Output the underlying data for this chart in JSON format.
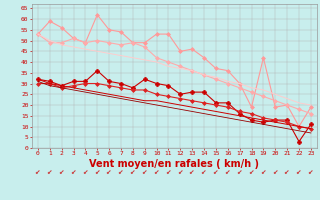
{
  "background_color": "#c8eeed",
  "grid_color": "#b0b0b0",
  "xlabel": "Vent moyen/en rafales ( km/h )",
  "xlabel_color": "#cc0000",
  "xlabel_fontsize": 7,
  "xtick_color": "#cc0000",
  "ytick_color": "#cc0000",
  "ytick_vals": [
    0,
    5,
    10,
    15,
    20,
    25,
    30,
    35,
    40,
    45,
    50,
    55,
    60,
    65
  ],
  "xlim": [
    -0.5,
    23.5
  ],
  "ylim": [
    0,
    67
  ],
  "line1_color": "#ff9999",
  "line1_marker": "D",
  "line1_markersize": 2.0,
  "line1_linewidth": 0.8,
  "line1_y": [
    53,
    59,
    56,
    51,
    49,
    62,
    55,
    54,
    49,
    49,
    53,
    53,
    45,
    46,
    42,
    37,
    36,
    30,
    19,
    42,
    19,
    20,
    10,
    19
  ],
  "line2_color": "#ffaaaa",
  "line2_marker": "D",
  "line2_markersize": 2.0,
  "line2_linewidth": 0.8,
  "line2_y": [
    53,
    49,
    49,
    51,
    49,
    50,
    49,
    48,
    49,
    47,
    42,
    40,
    38,
    36,
    34,
    32,
    30,
    28,
    26,
    24,
    22,
    20,
    18,
    16
  ],
  "line3_color": "#ffcccc",
  "line3_linewidth": 0.7,
  "line3_y": [
    53,
    50,
    48,
    47,
    46,
    45,
    44,
    43,
    42,
    41,
    40,
    38,
    37,
    36,
    34,
    33,
    31,
    30,
    28,
    27,
    25,
    23,
    21,
    20
  ],
  "line4_color": "#cc0000",
  "line4_marker": "P",
  "line4_markersize": 3.0,
  "line4_linewidth": 0.8,
  "line4_y": [
    32,
    31,
    29,
    31,
    31,
    36,
    31,
    30,
    28,
    32,
    30,
    29,
    25,
    26,
    26,
    21,
    21,
    16,
    13,
    12,
    13,
    13,
    3,
    11
  ],
  "line5_color": "#dd2222",
  "line5_marker": "D",
  "line5_markersize": 2.0,
  "line5_linewidth": 0.8,
  "line5_y": [
    30,
    30,
    28,
    29,
    30,
    30,
    29,
    28,
    27,
    27,
    25,
    24,
    23,
    22,
    21,
    20,
    19,
    17,
    16,
    14,
    13,
    12,
    10,
    9
  ],
  "line6_color": "#cc0000",
  "line6_linewidth": 0.7,
  "line6_y": [
    32,
    30,
    29,
    28,
    27,
    26,
    25,
    24,
    23,
    22,
    22,
    21,
    20,
    19,
    18,
    17,
    16,
    15,
    14,
    13,
    12,
    11,
    10,
    9
  ],
  "line7_color": "#990000",
  "line7_linewidth": 0.6,
  "line7_y": [
    31,
    29,
    28,
    27,
    26,
    25,
    24,
    23,
    22,
    21,
    20,
    19,
    18,
    17,
    16,
    15,
    14,
    13,
    12,
    11,
    10,
    9,
    8,
    7
  ]
}
